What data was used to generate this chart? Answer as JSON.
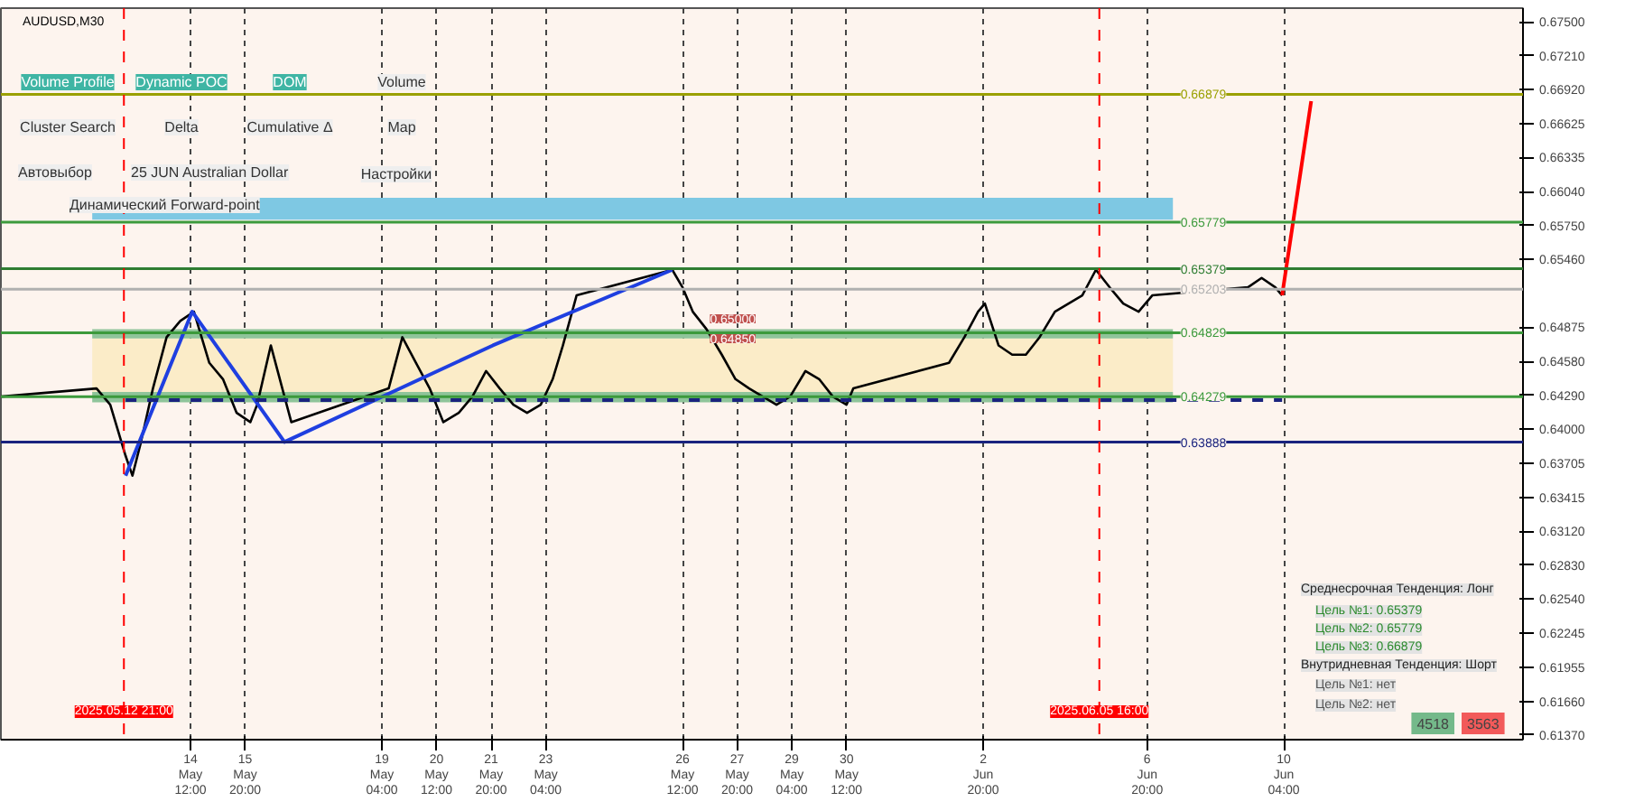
{
  "chart_data": {
    "type": "line",
    "title": "AUDUSD,M30",
    "xlim": [
      "2025-05-09T21:00",
      "2025-06-16T00:00"
    ],
    "ylim": [
      0.6133,
      0.6762
    ],
    "xticks": [
      {
        "value": "2025-05-14T12:00",
        "label": "14 May 12:00"
      },
      {
        "value": "2025-05-15T20:00",
        "label": "15 May 20:00"
      },
      {
        "value": "2025-05-19T04:00",
        "label": "19 May 04:00"
      },
      {
        "value": "2025-05-20T12:00",
        "label": "20 May 12:00"
      },
      {
        "value": "2025-05-21T20:00",
        "label": "21 May 20:00"
      },
      {
        "value": "2025-05-23T04:00",
        "label": "23 May 04:00"
      },
      {
        "value": "2025-05-26T12:00",
        "label": "26 May 12:00"
      },
      {
        "value": "2025-05-27T20:00",
        "label": "27 May 20:00"
      },
      {
        "value": "2025-05-29T04:00",
        "label": "29 May 04:00"
      },
      {
        "value": "2025-05-30T12:00",
        "label": "30 May 12:00"
      },
      {
        "value": "2025-06-02T20:00",
        "label": "2 Jun 20:00"
      },
      {
        "value": "2025-06-06T20:00",
        "label": "6 Jun 20:00"
      },
      {
        "value": "2025-06-10T04:00",
        "label": "10 Jun 04:00"
      }
    ],
    "yticks": [
      {
        "value": 0.675,
        "label": "0.67500"
      },
      {
        "value": 0.6721,
        "label": "0.67210"
      },
      {
        "value": 0.6692,
        "label": "0.66920"
      },
      {
        "value": 0.66625,
        "label": "0.66625"
      },
      {
        "value": 0.66335,
        "label": "0.66335"
      },
      {
        "value": 0.6604,
        "label": "0.66040"
      },
      {
        "value": 0.6575,
        "label": "0.65750"
      },
      {
        "value": 0.6546,
        "label": "0.65460"
      },
      {
        "value": 0.64875,
        "label": "0.64875"
      },
      {
        "value": 0.6458,
        "label": "0.64580"
      },
      {
        "value": 0.6429,
        "label": "0.64290"
      },
      {
        "value": 0.64,
        "label": "0.64000"
      },
      {
        "value": 0.63705,
        "label": "0.63705"
      },
      {
        "value": 0.63415,
        "label": "0.63415"
      },
      {
        "value": 0.6312,
        "label": "0.63120"
      },
      {
        "value": 0.6283,
        "label": "0.62830"
      },
      {
        "value": 0.6254,
        "label": "0.62540"
      },
      {
        "value": 0.62245,
        "label": "0.62245"
      },
      {
        "value": 0.61955,
        "label": "0.61955"
      },
      {
        "value": 0.6166,
        "label": "0.61660"
      },
      {
        "value": 0.6137,
        "label": "0.61370"
      }
    ],
    "grid": "x",
    "line_style": "solid",
    "series": [
      {
        "color": "#000000",
        "x": [
          "2025-05-09T21:00",
          "2025-05-12T05:00",
          "2025-05-12T13:00",
          "2025-05-12T22:00",
          "2025-05-13T02:00",
          "2025-05-13T07:00",
          "2025-05-13T14:00",
          "2025-05-13T22:00",
          "2025-05-14T06:00",
          "2025-05-14T14:00",
          "2025-05-14T23:00",
          "2025-05-15T07:00",
          "2025-05-15T15:00",
          "2025-05-15T23:00",
          "2025-05-16T03:00",
          "2025-05-16T11:00",
          "2025-05-16T19:00",
          "2025-05-16T23:00",
          "2025-05-19T08:00",
          "2025-05-19T16:00",
          "2025-05-20T00:00",
          "2025-05-20T08:00",
          "2025-05-20T16:00",
          "2025-05-21T01:00",
          "2025-05-21T09:00",
          "2025-05-21T17:00",
          "2025-05-22T01:00",
          "2025-05-22T09:00",
          "2025-05-22T17:00",
          "2025-05-23T01:00",
          "2025-05-23T08:00",
          "2025-05-23T14:00",
          "2025-05-23T22:00",
          "2025-05-26T06:00",
          "2025-05-26T12:00",
          "2025-05-26T18:00",
          "2025-05-27T02:00",
          "2025-05-27T11:00",
          "2025-05-27T19:00",
          "2025-05-28T03:00",
          "2025-05-28T11:00",
          "2025-05-28T19:00",
          "2025-05-29T03:00",
          "2025-05-29T12:00",
          "2025-05-29T20:00",
          "2025-05-30T04:00",
          "2025-05-30T12:00",
          "2025-05-30T16:00",
          "2025-06-02T00:00",
          "2025-06-02T09:00",
          "2025-06-02T17:00",
          "2025-06-02T21:00",
          "2025-06-03T05:00",
          "2025-06-03T13:00",
          "2025-06-03T21:00",
          "2025-06-04T05:00",
          "2025-06-04T14:00",
          "2025-06-04T22:00",
          "2025-06-05T06:00",
          "2025-06-05T14:00",
          "2025-06-05T22:00",
          "2025-06-06T06:00",
          "2025-06-06T15:00",
          "2025-06-06T23:00",
          "2025-06-09T07:00",
          "2025-06-09T15:00",
          "2025-06-09T23:00",
          "2025-06-10T03:00"
        ],
        "values": [
          0.6428,
          0.6435,
          0.6421,
          0.6377,
          0.636,
          0.6389,
          0.6435,
          0.6479,
          0.6493,
          0.6501,
          0.6457,
          0.6443,
          0.6414,
          0.6406,
          0.6421,
          0.6472,
          0.6428,
          0.6406,
          0.6435,
          0.6479,
          0.6457,
          0.6435,
          0.6406,
          0.6414,
          0.6428,
          0.645,
          0.6435,
          0.6421,
          0.6414,
          0.6421,
          0.6443,
          0.6472,
          0.6515,
          0.6537,
          0.6522,
          0.6501,
          0.6486,
          0.6464,
          0.6443,
          0.6435,
          0.6428,
          0.6421,
          0.6428,
          0.645,
          0.6443,
          0.6428,
          0.6421,
          0.6435,
          0.6457,
          0.6479,
          0.6501,
          0.6508,
          0.6472,
          0.6464,
          0.6464,
          0.6479,
          0.6501,
          0.6508,
          0.6515,
          0.6537,
          0.6522,
          0.6508,
          0.6501,
          0.6515,
          0.6522,
          0.653,
          0.6522,
          0.6515
        ]
      },
      {
        "color": "#ff0000",
        "x": [
          "2025-06-10T03:00",
          "2025-06-10T20:00"
        ],
        "values": [
          0.6515,
          0.6682
        ]
      },
      {
        "color": "#1f3fe0",
        "x": [
          "2025-05-12T22:00",
          "2025-05-14T13:00",
          "2025-05-16T19:00",
          "2025-05-21T21:00",
          "2025-05-26T06:00"
        ],
        "values": [
          0.636,
          0.6501,
          0.6389,
          0.6472,
          0.6537
        ]
      },
      {
        "color": "#1a237e",
        "x": [
          "2025-05-12T22:00",
          "2025-06-10T03:00"
        ],
        "values": [
          0.6425,
          0.6425
        ],
        "line_style": "dashed"
      }
    ],
    "ref_lines": [
      {
        "axis": "y",
        "value": 0.66879,
        "label": "0.66879",
        "color": "#9aa000"
      },
      {
        "axis": "y",
        "value": 0.65779,
        "label": "0.65779",
        "color": "#3c9a3c"
      },
      {
        "axis": "y",
        "value": 0.65379,
        "label": "0.65379",
        "color": "#2e7d32"
      },
      {
        "axis": "y",
        "value": 0.64829,
        "label": "0.64829",
        "color": "#3c9a3c"
      },
      {
        "axis": "y",
        "value": 0.64279,
        "label": "0.64279",
        "color": "#3c9a3c"
      },
      {
        "axis": "y",
        "value": 0.63888,
        "label": "0.63888",
        "color": "#1a237e"
      },
      {
        "axis": "y",
        "value": 0.65203,
        "label": "0.65203",
        "color": "#b0b0b0"
      },
      {
        "axis": "x",
        "value": "2025-05-12T21:00",
        "label": "2025.05.12 21:00",
        "color": "#ff0000",
        "line_style": "dashed"
      },
      {
        "axis": "x",
        "value": "2025-06-05T16:00",
        "label": "2025.06.05 16:00",
        "color": "#ff0000",
        "line_style": "dashed"
      }
    ],
    "bands": [
      {
        "axis": "y",
        "from": 0.658,
        "to": 0.6599,
        "color": "#7ec8e3"
      },
      {
        "axis": "y",
        "from": 0.6428,
        "to": 0.6478,
        "color": "#fbecc8"
      },
      {
        "axis": "y",
        "from": 0.6478,
        "to": 0.6486,
        "color": "#8fc49a"
      },
      {
        "axis": "y",
        "from": 0.6423,
        "to": 0.6432,
        "color": "#8fc49a"
      }
    ],
    "annotations": [
      "Volume Profile",
      "Dynamic POC",
      "DOM",
      "Volume",
      "Cluster Search",
      "Delta",
      "Cumulative Δ",
      "Map",
      "Автовыбор",
      "25 JUN Australian Dollar",
      "Настройки",
      "Динамический Forward-point",
      "Среднесрочная Тенденция: Лонг",
      "Цель №1: 0.65379",
      "Цель №2: 0.65779",
      "Цель №3: 0.66879",
      "Внутридневная Тенденция: Шорт",
      "Цель №1: нет",
      "Цель №2: нет",
      "4518",
      "3563",
      "0.65000",
      "0.64850"
    ]
  }
}
